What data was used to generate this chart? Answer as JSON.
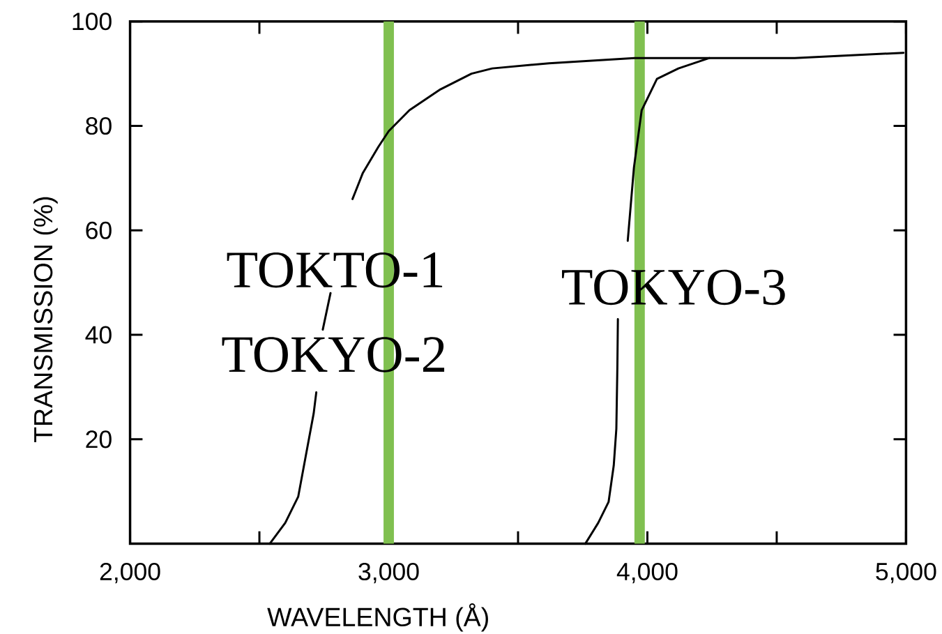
{
  "chart_data": {
    "type": "line",
    "xlabel": "WAVELENGTH (Å)",
    "ylabel": "TRANSMISSION (%)",
    "xlim": [
      2000,
      5000
    ],
    "ylim": [
      0,
      100
    ],
    "xticks": [
      {
        "value": 2000,
        "label": "2,000"
      },
      {
        "value": 3000,
        "label": "3,000"
      },
      {
        "value": 4000,
        "label": "4,000"
      },
      {
        "value": 5000,
        "label": "5,000"
      }
    ],
    "yticks": [
      20,
      40,
      60,
      80,
      100
    ],
    "series": [
      {
        "color": "#000000",
        "x": [
          2540,
          2600,
          2650,
          2680,
          2710,
          2720,
          2730,
          2745,
          2775,
          2820,
          2860,
          2900,
          2960,
          3000,
          3080,
          3200,
          3320,
          3400,
          3620,
          3950,
          4220,
          4570,
          4990
        ],
        "values": [
          0,
          4,
          9,
          17,
          25,
          29,
          null,
          41,
          48,
          null,
          66,
          71,
          76,
          79,
          83,
          87,
          90,
          91,
          92,
          93,
          93,
          93,
          94
        ]
      },
      {
        "color": "#000000",
        "x": [
          3760,
          3810,
          3850,
          3870,
          3880,
          3884,
          3886,
          3905,
          3924,
          3948,
          3978,
          4037,
          4120,
          4180,
          4240
        ],
        "values": [
          0,
          4,
          8,
          15,
          22,
          34,
          43,
          null,
          58,
          72,
          83,
          89,
          91,
          92,
          93
        ]
      }
    ],
    "ref_lines": [
      {
        "axis": "x",
        "value": 3000,
        "color": "#80c050"
      },
      {
        "axis": "x",
        "value": 3970,
        "color": "#80c050"
      }
    ],
    "annotations": [
      "TOKTO-1",
      "TOKYO-2",
      "TOKYO-3"
    ],
    "line_style": "solid"
  }
}
